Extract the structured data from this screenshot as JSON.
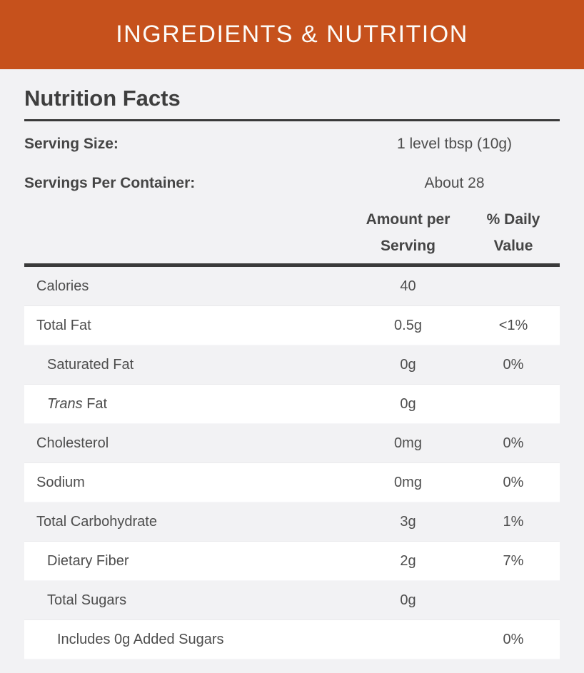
{
  "colors": {
    "accent": "#C6511C",
    "page_bg": "#F2F2F4",
    "rule": "#3A3A3A",
    "row_white": "#FFFFFF",
    "text": "#4D4D4D"
  },
  "banner": {
    "title": "INGREDIENTS & NUTRITION"
  },
  "panel": {
    "title": "Nutrition Facts",
    "serving_info": [
      {
        "label": "Serving Size:",
        "value": "1 level tbsp (10g)"
      },
      {
        "label": "Servings Per Container:",
        "value": "About 28"
      }
    ],
    "columns": {
      "amount": "Amount per Serving",
      "daily_value": "% Daily Value"
    },
    "rows": [
      {
        "label": "Calories",
        "amount": "40",
        "dv": "",
        "indent": 0,
        "shade": "gray",
        "italic_first_word": false
      },
      {
        "label": "Total Fat",
        "amount": "0.5g",
        "dv": "<1%",
        "indent": 0,
        "shade": "white",
        "italic_first_word": false
      },
      {
        "label": "Saturated Fat",
        "amount": "0g",
        "dv": "0%",
        "indent": 1,
        "shade": "gray",
        "italic_first_word": false
      },
      {
        "label": "Trans Fat",
        "amount": "0g",
        "dv": "",
        "indent": 1,
        "shade": "white",
        "italic_first_word": true
      },
      {
        "label": "Cholesterol",
        "amount": "0mg",
        "dv": "0%",
        "indent": 0,
        "shade": "gray",
        "italic_first_word": false
      },
      {
        "label": "Sodium",
        "amount": "0mg",
        "dv": "0%",
        "indent": 0,
        "shade": "white",
        "italic_first_word": false
      },
      {
        "label": "Total Carbohydrate",
        "amount": "3g",
        "dv": "1%",
        "indent": 0,
        "shade": "gray",
        "italic_first_word": false
      },
      {
        "label": "Dietary Fiber",
        "amount": "2g",
        "dv": "7%",
        "indent": 1,
        "shade": "white",
        "italic_first_word": false
      },
      {
        "label": "Total Sugars",
        "amount": "0g",
        "dv": "",
        "indent": 1,
        "shade": "gray",
        "italic_first_word": false
      },
      {
        "label": "Includes 0g Added Sugars",
        "amount": "",
        "dv": "0%",
        "indent": 2,
        "shade": "white",
        "italic_first_word": false
      }
    ]
  }
}
